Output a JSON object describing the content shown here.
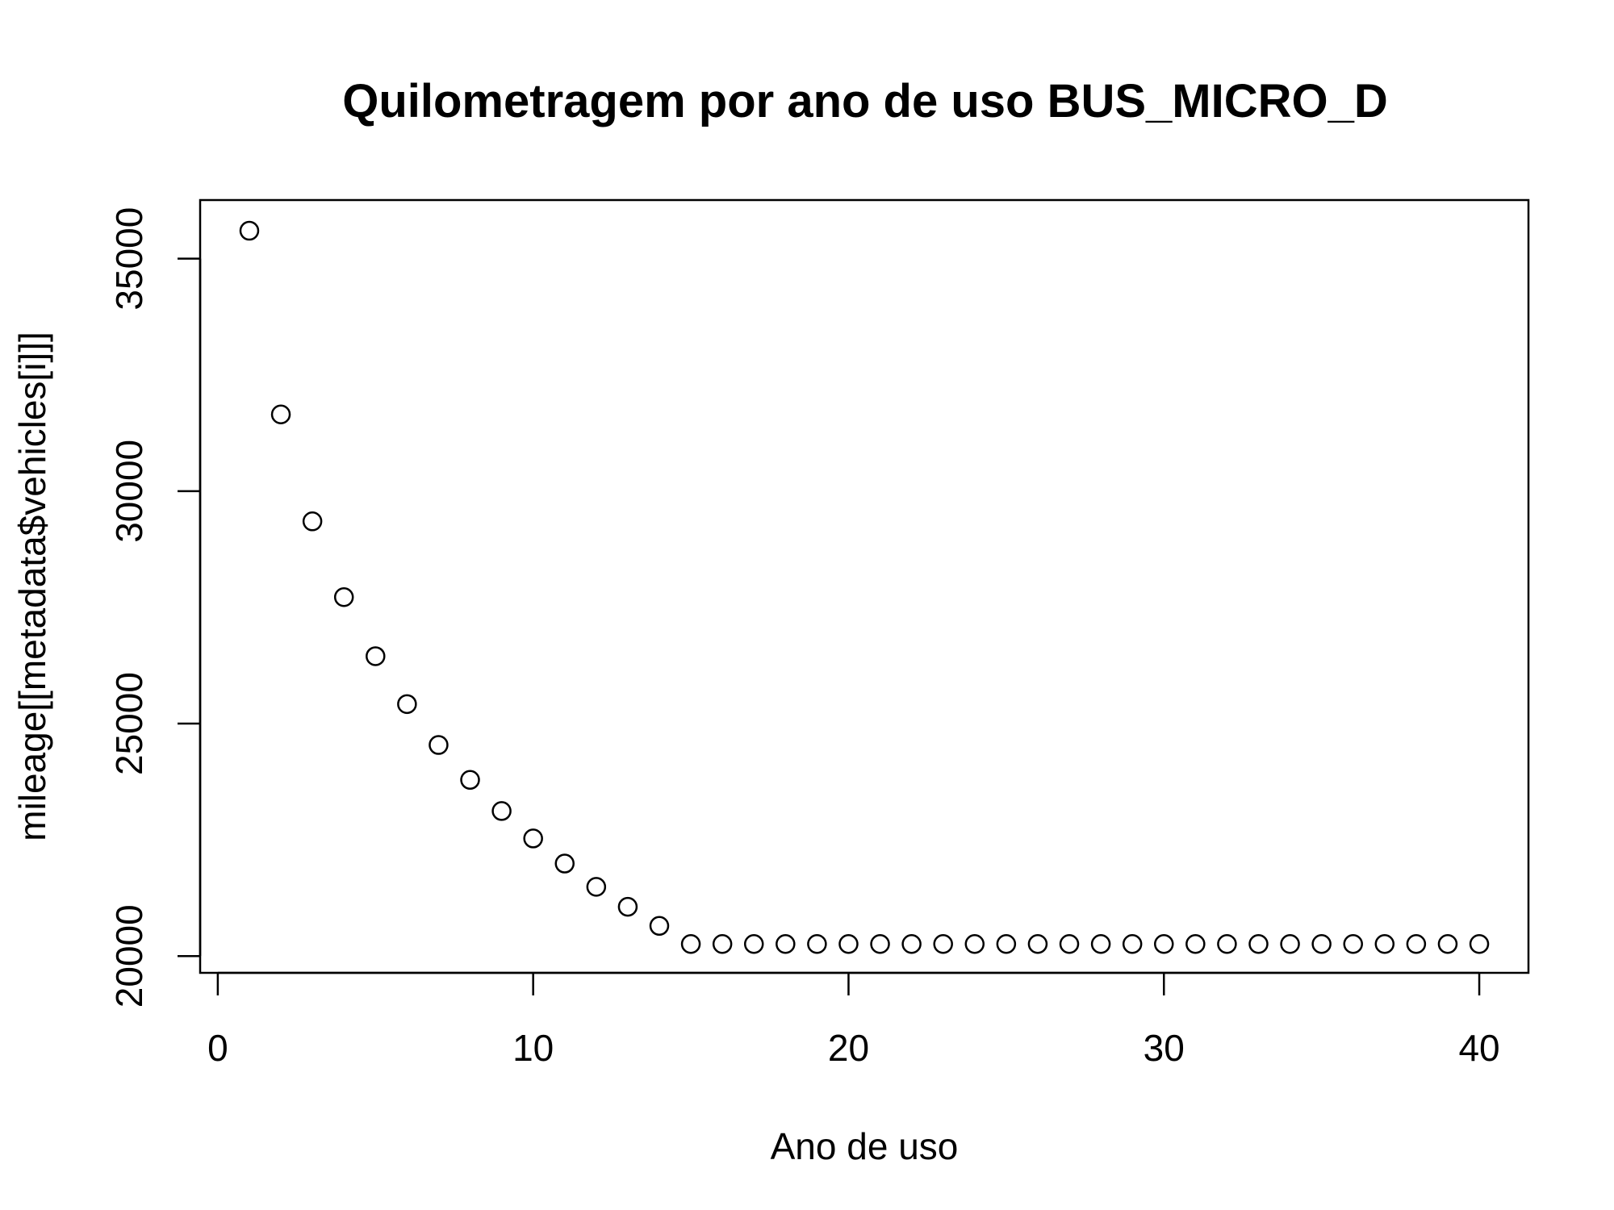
{
  "chart_data": {
    "type": "scatter",
    "title": "Quilometragem por ano de uso BUS_MICRO_D",
    "xlabel": "Ano de uso",
    "ylabel": "mileage[[metadata$vehicles[i]]]",
    "xlim": [
      -0.56,
      41.56
    ],
    "ylim": [
      19640,
      36260
    ],
    "x_ticks": [
      0,
      10,
      20,
      30,
      40
    ],
    "y_ticks": [
      20000,
      25000,
      30000,
      35000
    ],
    "x_tick_labels": [
      "0",
      "10",
      "20",
      "30",
      "40"
    ],
    "y_tick_labels": [
      "20000",
      "25000",
      "30000",
      "35000"
    ],
    "grid": false,
    "legend": "none",
    "marker": "open-circle",
    "color": "#000000",
    "x": [
      1,
      2,
      3,
      4,
      5,
      6,
      7,
      8,
      9,
      10,
      11,
      12,
      13,
      14,
      15,
      16,
      17,
      18,
      19,
      20,
      21,
      22,
      23,
      24,
      25,
      26,
      27,
      28,
      29,
      30,
      31,
      32,
      33,
      34,
      35,
      36,
      37,
      38,
      39,
      40
    ],
    "y": [
      35600,
      31650,
      29350,
      27720,
      26450,
      25420,
      24540,
      23790,
      23120,
      22530,
      21990,
      21490,
      21060,
      20650,
      20260,
      20260,
      20260,
      20260,
      20260,
      20260,
      20260,
      20260,
      20260,
      20260,
      20260,
      20260,
      20260,
      20260,
      20260,
      20260,
      20260,
      20260,
      20260,
      20260,
      20260,
      20260,
      20260,
      20260,
      20260,
      20260
    ]
  }
}
